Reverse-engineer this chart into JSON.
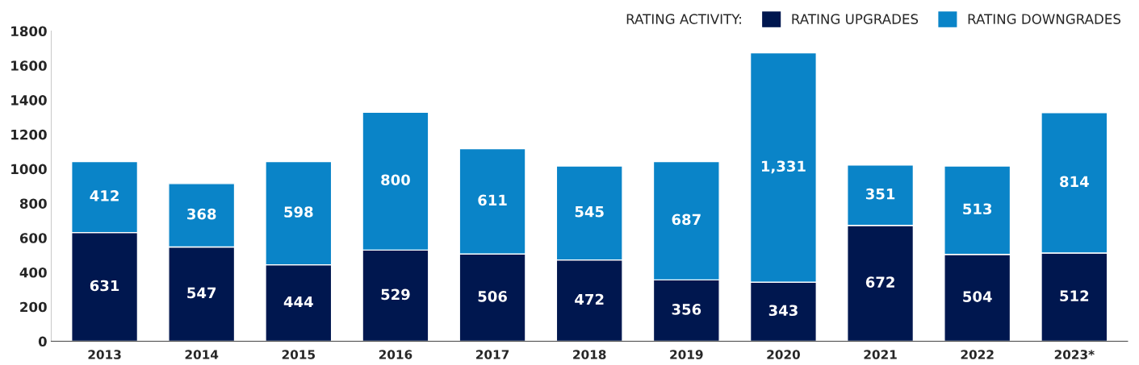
{
  "chart_data": {
    "type": "bar",
    "stacked": true,
    "categories": [
      "2013",
      "2014",
      "2015",
      "2016",
      "2017",
      "2018",
      "2019",
      "2020",
      "2021",
      "2022",
      "2023*"
    ],
    "legend_title": "RATING ACTIVITY:",
    "legend": "top right",
    "series": [
      {
        "name": "RATING UPGRADES",
        "color": "#00174f",
        "values": [
          631,
          547,
          444,
          529,
          506,
          472,
          356,
          343,
          672,
          504,
          512
        ],
        "value_labels": [
          "631",
          "547",
          "444",
          "529",
          "506",
          "472",
          "356",
          "343",
          "672",
          "504",
          "512"
        ]
      },
      {
        "name": "RATING DOWNGRADES",
        "color": "#0a84c8",
        "values": [
          412,
          368,
          598,
          800,
          611,
          545,
          687,
          1331,
          351,
          513,
          814
        ],
        "value_labels": [
          "412",
          "368",
          "598",
          "800",
          "611",
          "545",
          "687",
          "1,331",
          "351",
          "513",
          "814"
        ]
      }
    ],
    "ylim": [
      0,
      1800
    ],
    "yticks": [
      0,
      200,
      400,
      600,
      800,
      1000,
      1200,
      1400,
      1600,
      1800
    ],
    "grid": false
  }
}
